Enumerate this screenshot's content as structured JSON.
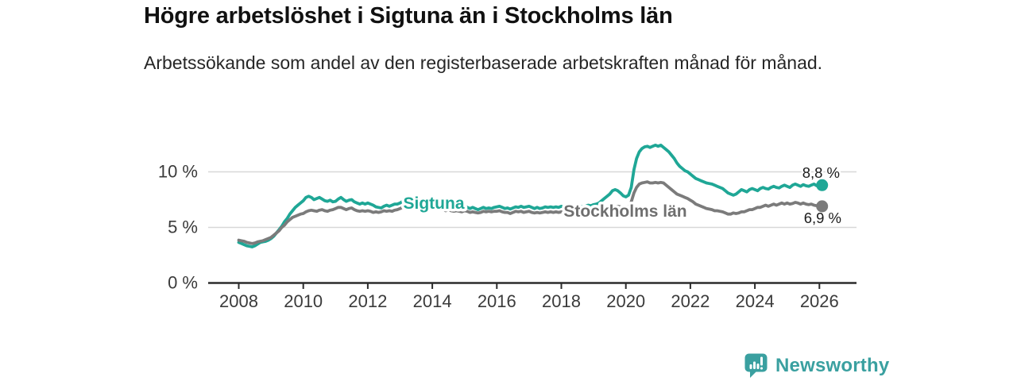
{
  "header": {
    "title": "Högre arbetslöshet i Sigtuna än i Stockholms län",
    "subtitle": "Arbetssökande som andel av den registerbaserade arbetskraften månad för månad."
  },
  "chart_data": {
    "type": "line",
    "title": "Högre arbetslöshet i Sigtuna än i Stockholms län",
    "subtitle": "Arbetssökande som andel av den registerbaserade arbetskraften månad för månad.",
    "unit": "%",
    "frequency": "monthly",
    "x_start_year": 2008,
    "x_end": "2026-02",
    "points_per_year": 12,
    "grid": "horizontal",
    "legend_position": "inline-labels",
    "ylim": [
      0,
      13.5
    ],
    "x_ticks": [
      "2008",
      "2010",
      "2012",
      "2014",
      "2016",
      "2018",
      "2020",
      "2022",
      "2024",
      "2026"
    ],
    "y_ticks": [
      {
        "value": 0,
        "label": "0 %"
      },
      {
        "value": 5,
        "label": "5 %"
      },
      {
        "value": 10,
        "label": "10 %"
      }
    ],
    "series": [
      {
        "name": "Sigtuna",
        "color": "#1fa796",
        "end_label": "8,8 %",
        "latest_value": 8.8,
        "values": [
          3.65,
          3.55,
          3.45,
          3.35,
          3.3,
          3.25,
          3.35,
          3.5,
          3.65,
          3.7,
          3.75,
          3.85,
          4.0,
          4.2,
          4.5,
          4.8,
          5.1,
          5.5,
          5.8,
          6.2,
          6.5,
          6.8,
          7.0,
          7.2,
          7.4,
          7.7,
          7.8,
          7.7,
          7.5,
          7.6,
          7.7,
          7.55,
          7.4,
          7.35,
          7.45,
          7.3,
          7.35,
          7.55,
          7.7,
          7.5,
          7.35,
          7.45,
          7.5,
          7.3,
          7.2,
          7.1,
          7.2,
          7.1,
          7.2,
          7.1,
          7.0,
          6.85,
          6.8,
          6.75,
          6.9,
          7.0,
          6.9,
          7.0,
          7.1,
          7.1,
          7.2,
          7.35,
          7.45,
          7.3,
          7.4,
          7.5,
          7.4,
          7.3,
          7.25,
          7.2,
          7.15,
          7.1,
          7.2,
          7.15,
          7.05,
          7.1,
          7.0,
          6.9,
          7.0,
          6.9,
          6.85,
          6.9,
          6.8,
          6.8,
          6.9,
          6.8,
          6.7,
          6.8,
          6.7,
          6.6,
          6.7,
          6.8,
          6.7,
          6.75,
          6.7,
          6.8,
          6.85,
          6.9,
          6.8,
          6.7,
          6.75,
          6.65,
          6.75,
          6.85,
          6.8,
          6.9,
          6.8,
          6.85,
          6.9,
          6.8,
          6.7,
          6.8,
          6.7,
          6.75,
          6.85,
          6.8,
          6.85,
          6.8,
          6.85,
          6.8,
          6.9,
          6.8,
          6.75,
          6.85,
          6.8,
          6.7,
          6.8,
          6.9,
          6.85,
          6.9,
          7.0,
          6.95,
          7.05,
          7.1,
          7.2,
          7.4,
          7.6,
          7.8,
          8.0,
          8.3,
          8.4,
          8.3,
          8.1,
          7.85,
          7.75,
          7.9,
          8.6,
          10.2,
          11.2,
          11.8,
          12.1,
          12.25,
          12.3,
          12.2,
          12.3,
          12.4,
          12.3,
          12.4,
          12.2,
          12.0,
          11.8,
          11.5,
          11.2,
          10.8,
          10.5,
          10.3,
          10.1,
          10.0,
          9.8,
          9.6,
          9.4,
          9.3,
          9.2,
          9.1,
          9.0,
          8.95,
          8.9,
          8.8,
          8.7,
          8.6,
          8.5,
          8.3,
          8.1,
          8.0,
          7.9,
          8.0,
          8.2,
          8.4,
          8.3,
          8.2,
          8.4,
          8.5,
          8.4,
          8.3,
          8.5,
          8.6,
          8.5,
          8.45,
          8.6,
          8.7,
          8.6,
          8.55,
          8.7,
          8.8,
          8.7,
          8.6,
          8.8,
          8.9,
          8.8,
          8.7,
          8.85,
          8.75,
          8.7,
          8.8,
          8.9,
          8.75,
          8.7,
          8.8
        ]
      },
      {
        "name": "Stockholms län",
        "color": "#7b7b7b",
        "end_label": "6,9 %",
        "latest_value": 6.9,
        "values": [
          3.85,
          3.8,
          3.75,
          3.65,
          3.6,
          3.55,
          3.6,
          3.7,
          3.75,
          3.8,
          3.9,
          4.0,
          4.1,
          4.3,
          4.5,
          4.7,
          5.0,
          5.2,
          5.5,
          5.7,
          5.9,
          6.0,
          6.1,
          6.2,
          6.25,
          6.4,
          6.5,
          6.55,
          6.5,
          6.45,
          6.55,
          6.6,
          6.5,
          6.45,
          6.55,
          6.6,
          6.7,
          6.8,
          6.8,
          6.7,
          6.6,
          6.7,
          6.75,
          6.6,
          6.5,
          6.45,
          6.5,
          6.45,
          6.5,
          6.45,
          6.35,
          6.4,
          6.35,
          6.4,
          6.5,
          6.45,
          6.5,
          6.45,
          6.55,
          6.6,
          6.7,
          6.8,
          6.9,
          6.8,
          6.85,
          6.8,
          6.9,
          6.8,
          6.75,
          6.8,
          6.7,
          6.7,
          6.75,
          6.7,
          6.6,
          6.65,
          6.6,
          6.5,
          6.6,
          6.5,
          6.45,
          6.5,
          6.45,
          6.4,
          6.5,
          6.45,
          6.35,
          6.4,
          6.35,
          6.3,
          6.35,
          6.45,
          6.4,
          6.45,
          6.4,
          6.45,
          6.45,
          6.5,
          6.4,
          6.35,
          6.35,
          6.25,
          6.35,
          6.45,
          6.4,
          6.45,
          6.35,
          6.4,
          6.45,
          6.35,
          6.3,
          6.35,
          6.3,
          6.35,
          6.4,
          6.35,
          6.4,
          6.35,
          6.4,
          6.35,
          6.4,
          6.35,
          6.3,
          6.4,
          6.35,
          6.25,
          6.35,
          6.4,
          6.35,
          6.4,
          6.5,
          6.45,
          6.5,
          6.55,
          6.6,
          6.6,
          6.65,
          6.7,
          6.8,
          6.85,
          6.9,
          6.9,
          6.85,
          6.8,
          6.8,
          6.85,
          7.3,
          8.1,
          8.6,
          8.9,
          9.0,
          9.05,
          9.1,
          9.0,
          9.0,
          9.05,
          9.0,
          9.05,
          9.0,
          8.8,
          8.6,
          8.4,
          8.2,
          8.0,
          7.9,
          7.8,
          7.7,
          7.6,
          7.45,
          7.3,
          7.1,
          7.0,
          6.9,
          6.8,
          6.7,
          6.65,
          6.6,
          6.5,
          6.5,
          6.45,
          6.4,
          6.3,
          6.2,
          6.2,
          6.3,
          6.25,
          6.3,
          6.4,
          6.4,
          6.5,
          6.6,
          6.6,
          6.7,
          6.8,
          6.8,
          6.9,
          7.0,
          6.9,
          7.0,
          7.1,
          7.0,
          7.1,
          7.2,
          7.1,
          7.2,
          7.1,
          7.15,
          7.25,
          7.2,
          7.1,
          7.2,
          7.1,
          7.05,
          7.1,
          7.0,
          6.95,
          7.0,
          6.9
        ]
      }
    ]
  },
  "footer": {
    "brand": "Newsworthy",
    "brand_color": "#3aa0a0",
    "icon": "speech-bubble-bar-chart-icon"
  }
}
